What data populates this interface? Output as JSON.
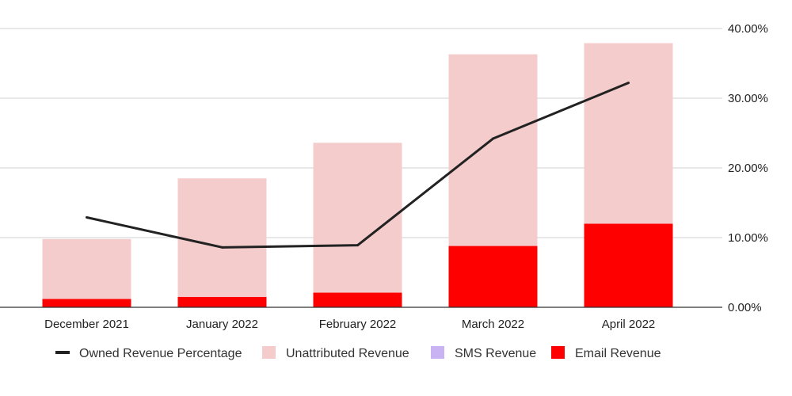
{
  "chart_data": {
    "type": "bar",
    "categories": [
      "December 2021",
      "January 2022",
      "February 2022",
      "March 2022",
      "April 2022"
    ],
    "series": [
      {
        "name": "Email Revenue",
        "kind": "bar",
        "color": "#ff0000",
        "values": [
          1.2,
          1.5,
          2.1,
          8.8,
          12.0
        ]
      },
      {
        "name": "SMS Revenue",
        "kind": "bar",
        "color": "#c9b3f2",
        "values": [
          0,
          0,
          0,
          0,
          0
        ]
      },
      {
        "name": "Unattributed Revenue",
        "kind": "bar",
        "color": "#f4cccc",
        "values": [
          8.6,
          17.0,
          21.5,
          27.5,
          25.9
        ]
      },
      {
        "name": "Owned Revenue Percentage",
        "kind": "line",
        "color": "#222222",
        "values": [
          12.9,
          8.6,
          8.9,
          24.2,
          32.2
        ]
      }
    ],
    "stacked": true,
    "right_axis": {
      "ylim": [
        0,
        40
      ],
      "ticks": [
        "0.00%",
        "10.00%",
        "20.00%",
        "30.00%",
        "40.00%"
      ]
    },
    "grid": true,
    "legend_position": "bottom",
    "legend": [
      {
        "label": "Owned Revenue Percentage",
        "color": "#222222",
        "marker": "line"
      },
      {
        "label": "Unattributed Revenue",
        "color": "#f4cccc",
        "marker": "square"
      },
      {
        "label": "SMS Revenue",
        "color": "#c9b3f2",
        "marker": "square"
      },
      {
        "label": "Email Revenue",
        "color": "#ff0000",
        "marker": "square"
      }
    ]
  }
}
